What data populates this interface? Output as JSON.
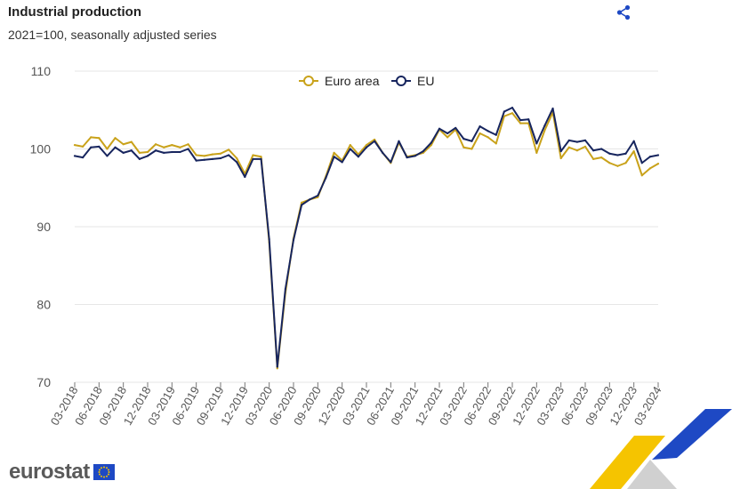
{
  "header": {
    "title": "Industrial production",
    "subtitle": "2021=100, seasonally adjusted series",
    "share_icon": "share-icon"
  },
  "brand": {
    "name": "eurostat",
    "flag_icon": "eu-flag-icon"
  },
  "colors": {
    "euro_area": "#c9a21a",
    "eu": "#17255e",
    "grid": "#e6e6e6",
    "accent_blue": "#1e49c4",
    "accent_yellow": "#f5c400"
  },
  "chart_data": {
    "type": "line",
    "title": "Industrial production",
    "subtitle": "2021=100, seasonally adjusted series",
    "xlabel": "",
    "ylabel": "",
    "ylim": [
      70,
      110
    ],
    "yticks": [
      70,
      80,
      90,
      100,
      110
    ],
    "grid": true,
    "legend_position": "top-center",
    "x": [
      "03-2018",
      "04-2018",
      "05-2018",
      "06-2018",
      "07-2018",
      "08-2018",
      "09-2018",
      "10-2018",
      "11-2018",
      "12-2018",
      "01-2019",
      "02-2019",
      "03-2019",
      "04-2019",
      "05-2019",
      "06-2019",
      "07-2019",
      "08-2019",
      "09-2019",
      "10-2019",
      "11-2019",
      "12-2019",
      "01-2020",
      "02-2020",
      "03-2020",
      "04-2020",
      "05-2020",
      "06-2020",
      "07-2020",
      "08-2020",
      "09-2020",
      "10-2020",
      "11-2020",
      "12-2020",
      "01-2021",
      "02-2021",
      "03-2021",
      "04-2021",
      "05-2021",
      "06-2021",
      "07-2021",
      "08-2021",
      "09-2021",
      "10-2021",
      "11-2021",
      "12-2021",
      "01-2022",
      "02-2022",
      "03-2022",
      "04-2022",
      "05-2022",
      "06-2022",
      "07-2022",
      "08-2022",
      "09-2022",
      "10-2022",
      "11-2022",
      "12-2022",
      "01-2023",
      "02-2023",
      "03-2023",
      "04-2023",
      "05-2023",
      "06-2023",
      "07-2023",
      "08-2023",
      "09-2023",
      "10-2023",
      "11-2023",
      "12-2023",
      "01-2024",
      "02-2024",
      "03-2024"
    ],
    "xtick_labels": [
      "03-2018",
      "06-2018",
      "09-2018",
      "12-2018",
      "03-2019",
      "06-2019",
      "09-2019",
      "12-2019",
      "03-2020",
      "06-2020",
      "09-2020",
      "12-2020",
      "03-2021",
      "06-2021",
      "09-2021",
      "12-2021",
      "03-2022",
      "06-2022",
      "09-2022",
      "12-2022",
      "03-2023",
      "06-2023",
      "09-2023",
      "12-2023",
      "03-2024"
    ],
    "series": [
      {
        "name": "Euro area",
        "color": "#c9a21a",
        "values": [
          100.5,
          100.3,
          101.5,
          101.4,
          100.0,
          101.4,
          100.6,
          100.9,
          99.5,
          99.6,
          100.6,
          100.2,
          100.5,
          100.2,
          100.6,
          99.2,
          99.1,
          99.3,
          99.4,
          99.9,
          98.8,
          96.8,
          99.2,
          99.0,
          88.0,
          71.8,
          81.5,
          88.5,
          93.1,
          93.5,
          93.8,
          96.5,
          99.5,
          98.5,
          100.5,
          99.3,
          100.5,
          101.2,
          99.5,
          98.2,
          100.8,
          99.0,
          99.2,
          99.5,
          100.5,
          102.5,
          101.5,
          102.5,
          100.2,
          100.0,
          102.0,
          101.5,
          100.7,
          104.2,
          104.6,
          103.3,
          103.3,
          99.5,
          102.4,
          104.7,
          98.8,
          100.2,
          99.8,
          100.3,
          98.7,
          98.9,
          98.2,
          97.8,
          98.2,
          99.7,
          96.6,
          97.5,
          98.1
        ]
      },
      {
        "name": "EU",
        "color": "#17255e",
        "values": [
          99.1,
          98.9,
          100.2,
          100.3,
          99.1,
          100.2,
          99.5,
          99.8,
          98.7,
          99.1,
          99.8,
          99.5,
          99.6,
          99.6,
          100.0,
          98.5,
          98.6,
          98.7,
          98.8,
          99.2,
          98.3,
          96.4,
          98.7,
          98.7,
          88.4,
          72.0,
          82.0,
          88.3,
          92.8,
          93.5,
          94.0,
          96.3,
          99.0,
          98.3,
          100.0,
          99.0,
          100.2,
          101.0,
          99.5,
          98.3,
          101.0,
          98.9,
          99.1,
          99.7,
          100.8,
          102.6,
          102.0,
          102.7,
          101.3,
          101.0,
          102.9,
          102.3,
          101.8,
          104.8,
          105.3,
          103.7,
          103.8,
          100.7,
          103.0,
          105.2,
          99.7,
          101.1,
          100.9,
          101.1,
          99.8,
          100.0,
          99.4,
          99.2,
          99.4,
          101.0,
          98.2,
          99.0,
          99.2
        ]
      }
    ]
  }
}
